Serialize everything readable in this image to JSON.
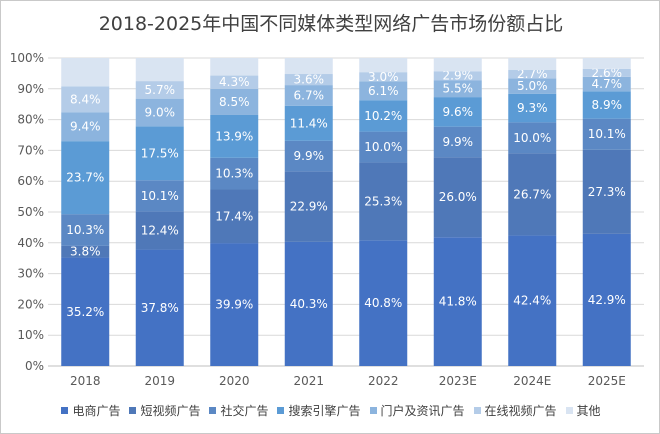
{
  "chart_data": {
    "type": "bar",
    "stacked": true,
    "percent": true,
    "title": "2018-2025年中国不同媒体类型网络广告市场份额占比",
    "categories": [
      "2018",
      "2019",
      "2020",
      "2021",
      "2022",
      "2023E",
      "2024E",
      "2025E"
    ],
    "y_ticks": [
      "0%",
      "10%",
      "20%",
      "30%",
      "40%",
      "50%",
      "60%",
      "70%",
      "80%",
      "90%",
      "100%"
    ],
    "ylim": [
      0,
      100
    ],
    "legend_position": "bottom",
    "grid": true,
    "series": [
      {
        "name": "电商广告",
        "color": "#4472c4",
        "values": [
          35.2,
          37.8,
          39.9,
          40.3,
          40.8,
          41.8,
          42.4,
          42.9
        ],
        "labels": [
          "35.2%",
          "37.8%",
          "39.9%",
          "40.3%",
          "40.8%",
          "41.8%",
          "42.4%",
          "42.9%"
        ]
      },
      {
        "name": "短视频广告",
        "color": "#4f78b8",
        "values": [
          3.8,
          12.4,
          17.4,
          22.9,
          25.3,
          26.0,
          26.7,
          27.3
        ],
        "labels": [
          "3.8%",
          "12.4%",
          "17.4%",
          "22.9%",
          "25.3%",
          "26.0%",
          "26.7%",
          "27.3%"
        ]
      },
      {
        "name": "社交广告",
        "color": "#5b88c4",
        "values": [
          10.3,
          10.1,
          10.3,
          9.9,
          10.0,
          9.9,
          10.0,
          10.1
        ],
        "labels": [
          "10.3%",
          "10.1%",
          "10.3%",
          "9.9%",
          "10.0%",
          "9.9%",
          "10.0%",
          "10.1%"
        ]
      },
      {
        "name": "搜索引擎广告",
        "color": "#5b9bd5",
        "values": [
          23.7,
          17.5,
          13.9,
          11.4,
          10.2,
          9.6,
          9.3,
          8.9
        ],
        "labels": [
          "23.7%",
          "17.5%",
          "13.9%",
          "11.4%",
          "10.2%",
          "9.6%",
          "9.3%",
          "8.9%"
        ]
      },
      {
        "name": "门户及资讯广告",
        "color": "#8cb4de",
        "values": [
          9.4,
          9.0,
          8.5,
          6.7,
          6.1,
          5.5,
          5.0,
          4.7
        ],
        "labels": [
          "9.4%",
          "9.0%",
          "8.5%",
          "6.7%",
          "6.1%",
          "5.5%",
          "5.0%",
          "4.7%"
        ]
      },
      {
        "name": "在线视频广告",
        "color": "#b4cce8",
        "values": [
          8.4,
          5.7,
          4.3,
          3.6,
          3.0,
          2.9,
          2.7,
          2.6
        ],
        "labels": [
          "8.4%",
          "5.7%",
          "4.3%",
          "3.6%",
          "3.0%",
          "2.9%",
          "2.7%",
          "2.6%"
        ]
      },
      {
        "name": "其他",
        "color": "#d9e4f2",
        "values": [
          0,
          0,
          0,
          0,
          0,
          0,
          0,
          0
        ],
        "labels": [
          "",
          "",
          "",
          "",
          "",
          "",
          "",
          ""
        ]
      }
    ]
  }
}
